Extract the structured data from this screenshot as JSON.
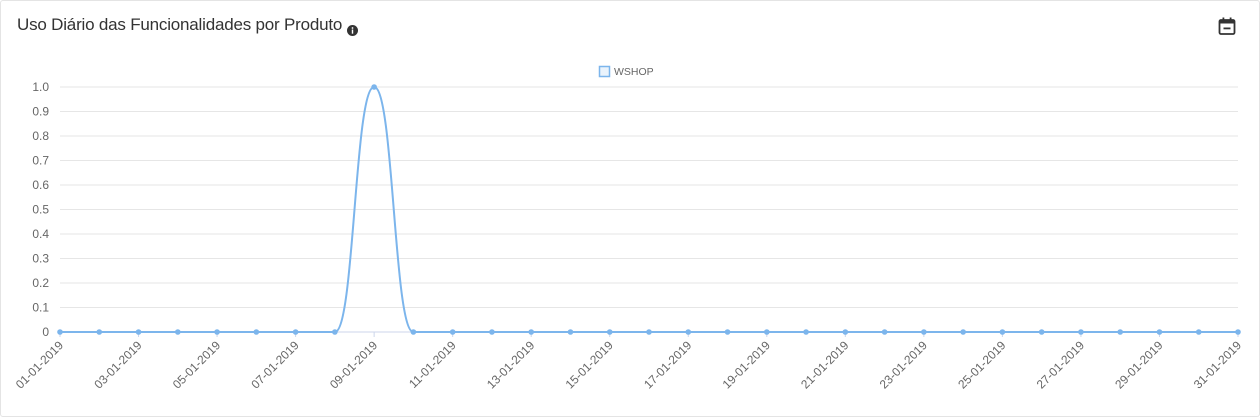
{
  "header": {
    "title": "Uso Diário das Funcionalidades por Produto",
    "info_icon": "info-circle-icon",
    "calendar_icon": "calendar-minus-icon"
  },
  "colors": {
    "series": "#7cb5ec",
    "grid": "#e6e6e6",
    "axis_text": "#666666",
    "title_text": "#333333"
  },
  "chart_data": {
    "type": "line",
    "title": "",
    "xlabel": "",
    "ylabel": "",
    "ylim": [
      0,
      1
    ],
    "yticks": [
      "0",
      "0.1",
      "0.2",
      "0.3",
      "0.4",
      "0.5",
      "0.6",
      "0.7",
      "0.8",
      "0.9",
      "1.0"
    ],
    "x": [
      "01-01-2019",
      "02-01-2019",
      "03-01-2019",
      "04-01-2019",
      "05-01-2019",
      "06-01-2019",
      "07-01-2019",
      "08-01-2019",
      "09-01-2019",
      "10-01-2019",
      "11-01-2019",
      "12-01-2019",
      "13-01-2019",
      "14-01-2019",
      "15-01-2019",
      "16-01-2019",
      "17-01-2019",
      "18-01-2019",
      "19-01-2019",
      "20-01-2019",
      "21-01-2019",
      "22-01-2019",
      "23-01-2019",
      "24-01-2019",
      "25-01-2019",
      "26-01-2019",
      "27-01-2019",
      "28-01-2019",
      "29-01-2019",
      "30-01-2019",
      "31-01-2019"
    ],
    "x_tick_labels": [
      "01-01-2019",
      "03-01-2019",
      "05-01-2019",
      "07-01-2019",
      "09-01-2019",
      "11-01-2019",
      "13-01-2019",
      "15-01-2019",
      "17-01-2019",
      "19-01-2019",
      "21-01-2019",
      "23-01-2019",
      "25-01-2019",
      "27-01-2019",
      "29-01-2019",
      "31-01-2019"
    ],
    "series": [
      {
        "name": "WSHOP",
        "color": "#7cb5ec",
        "values": [
          0,
          0,
          0,
          0,
          0,
          0,
          0,
          0,
          1,
          0,
          0,
          0,
          0,
          0,
          0,
          0,
          0,
          0,
          0,
          0,
          0,
          0,
          0,
          0,
          0,
          0,
          0,
          0,
          0,
          0,
          0
        ]
      }
    ],
    "legend": "top-center",
    "grid": true
  }
}
